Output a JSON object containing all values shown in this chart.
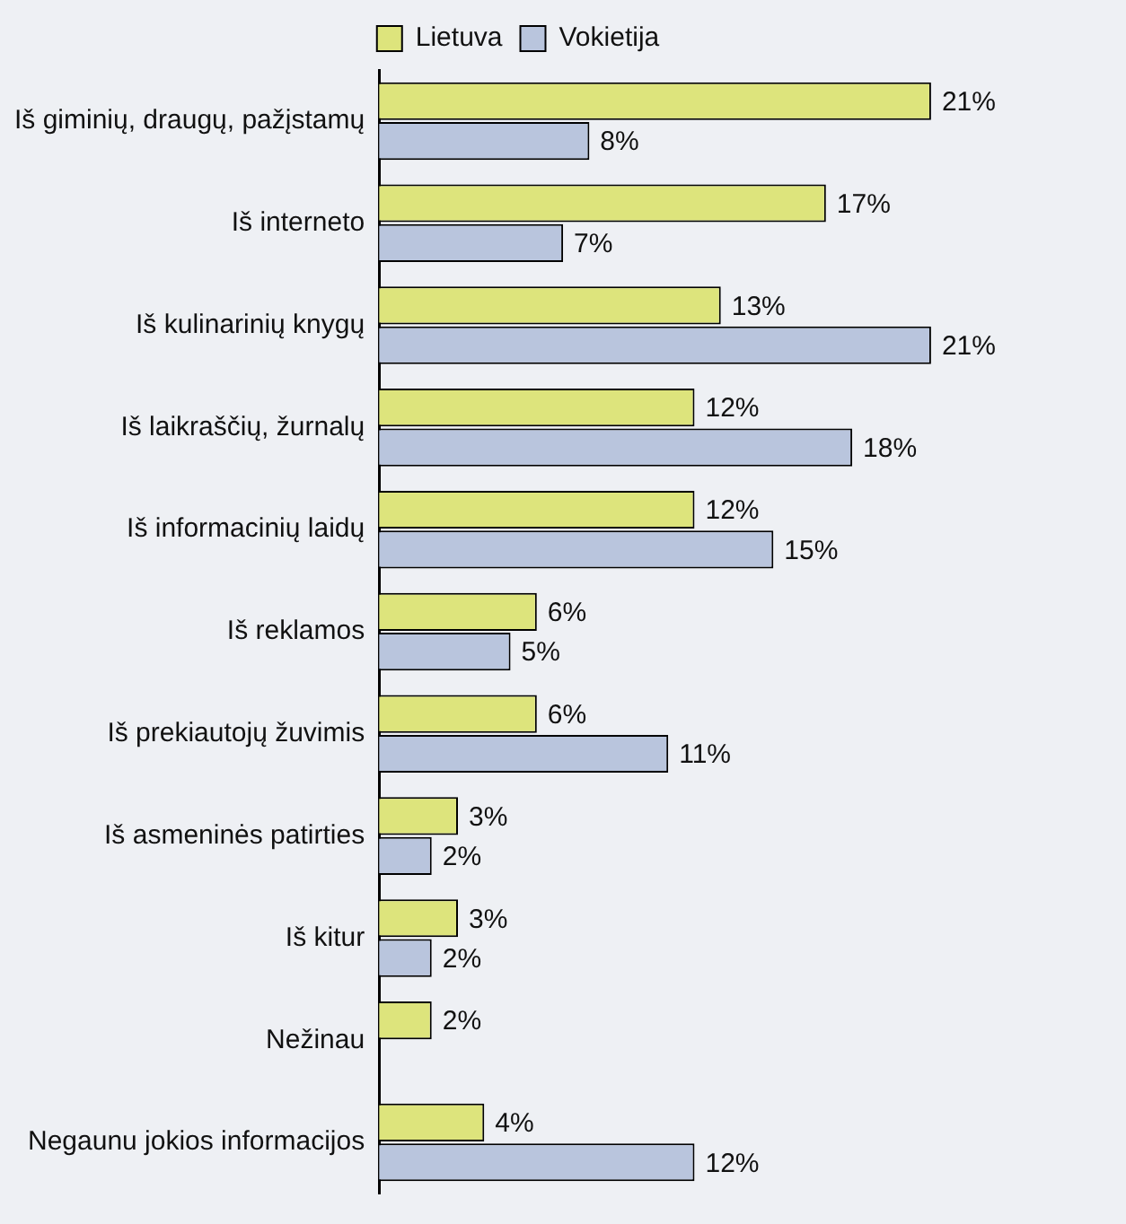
{
  "chart_data": {
    "type": "bar",
    "orientation": "horizontal",
    "legend": "top",
    "categories": [
      "Iš giminių, draugų, pažįstamų",
      "Iš interneto",
      "Iš kulinarinių knygų",
      "Iš laikraščių, žurnalų",
      "Iš informacinių laidų",
      "Iš reklamos",
      "Iš prekiautojų žuvimis",
      "Iš asmeninės patirties",
      "Iš kitur",
      "Nežinau",
      "Negaunu jokios informacijos"
    ],
    "series": [
      {
        "name": "Lietuva",
        "color": "#dde47c",
        "values": [
          21,
          17,
          13,
          12,
          12,
          6,
          6,
          3,
          3,
          2,
          4
        ],
        "value_labels": [
          "21%",
          "17%",
          "13%",
          "12%",
          "12%",
          "6%",
          "6%",
          "3%",
          "3%",
          "2%",
          "4%"
        ]
      },
      {
        "name": "Vokietija",
        "color": "#b9c5dd",
        "values": [
          8,
          7,
          21,
          18,
          15,
          5,
          11,
          2,
          2,
          null,
          12
        ],
        "value_labels": [
          "8%",
          "7%",
          "21%",
          "18%",
          "15%",
          "5%",
          "11%",
          "2%",
          "2%",
          null,
          "12%"
        ]
      }
    ]
  }
}
